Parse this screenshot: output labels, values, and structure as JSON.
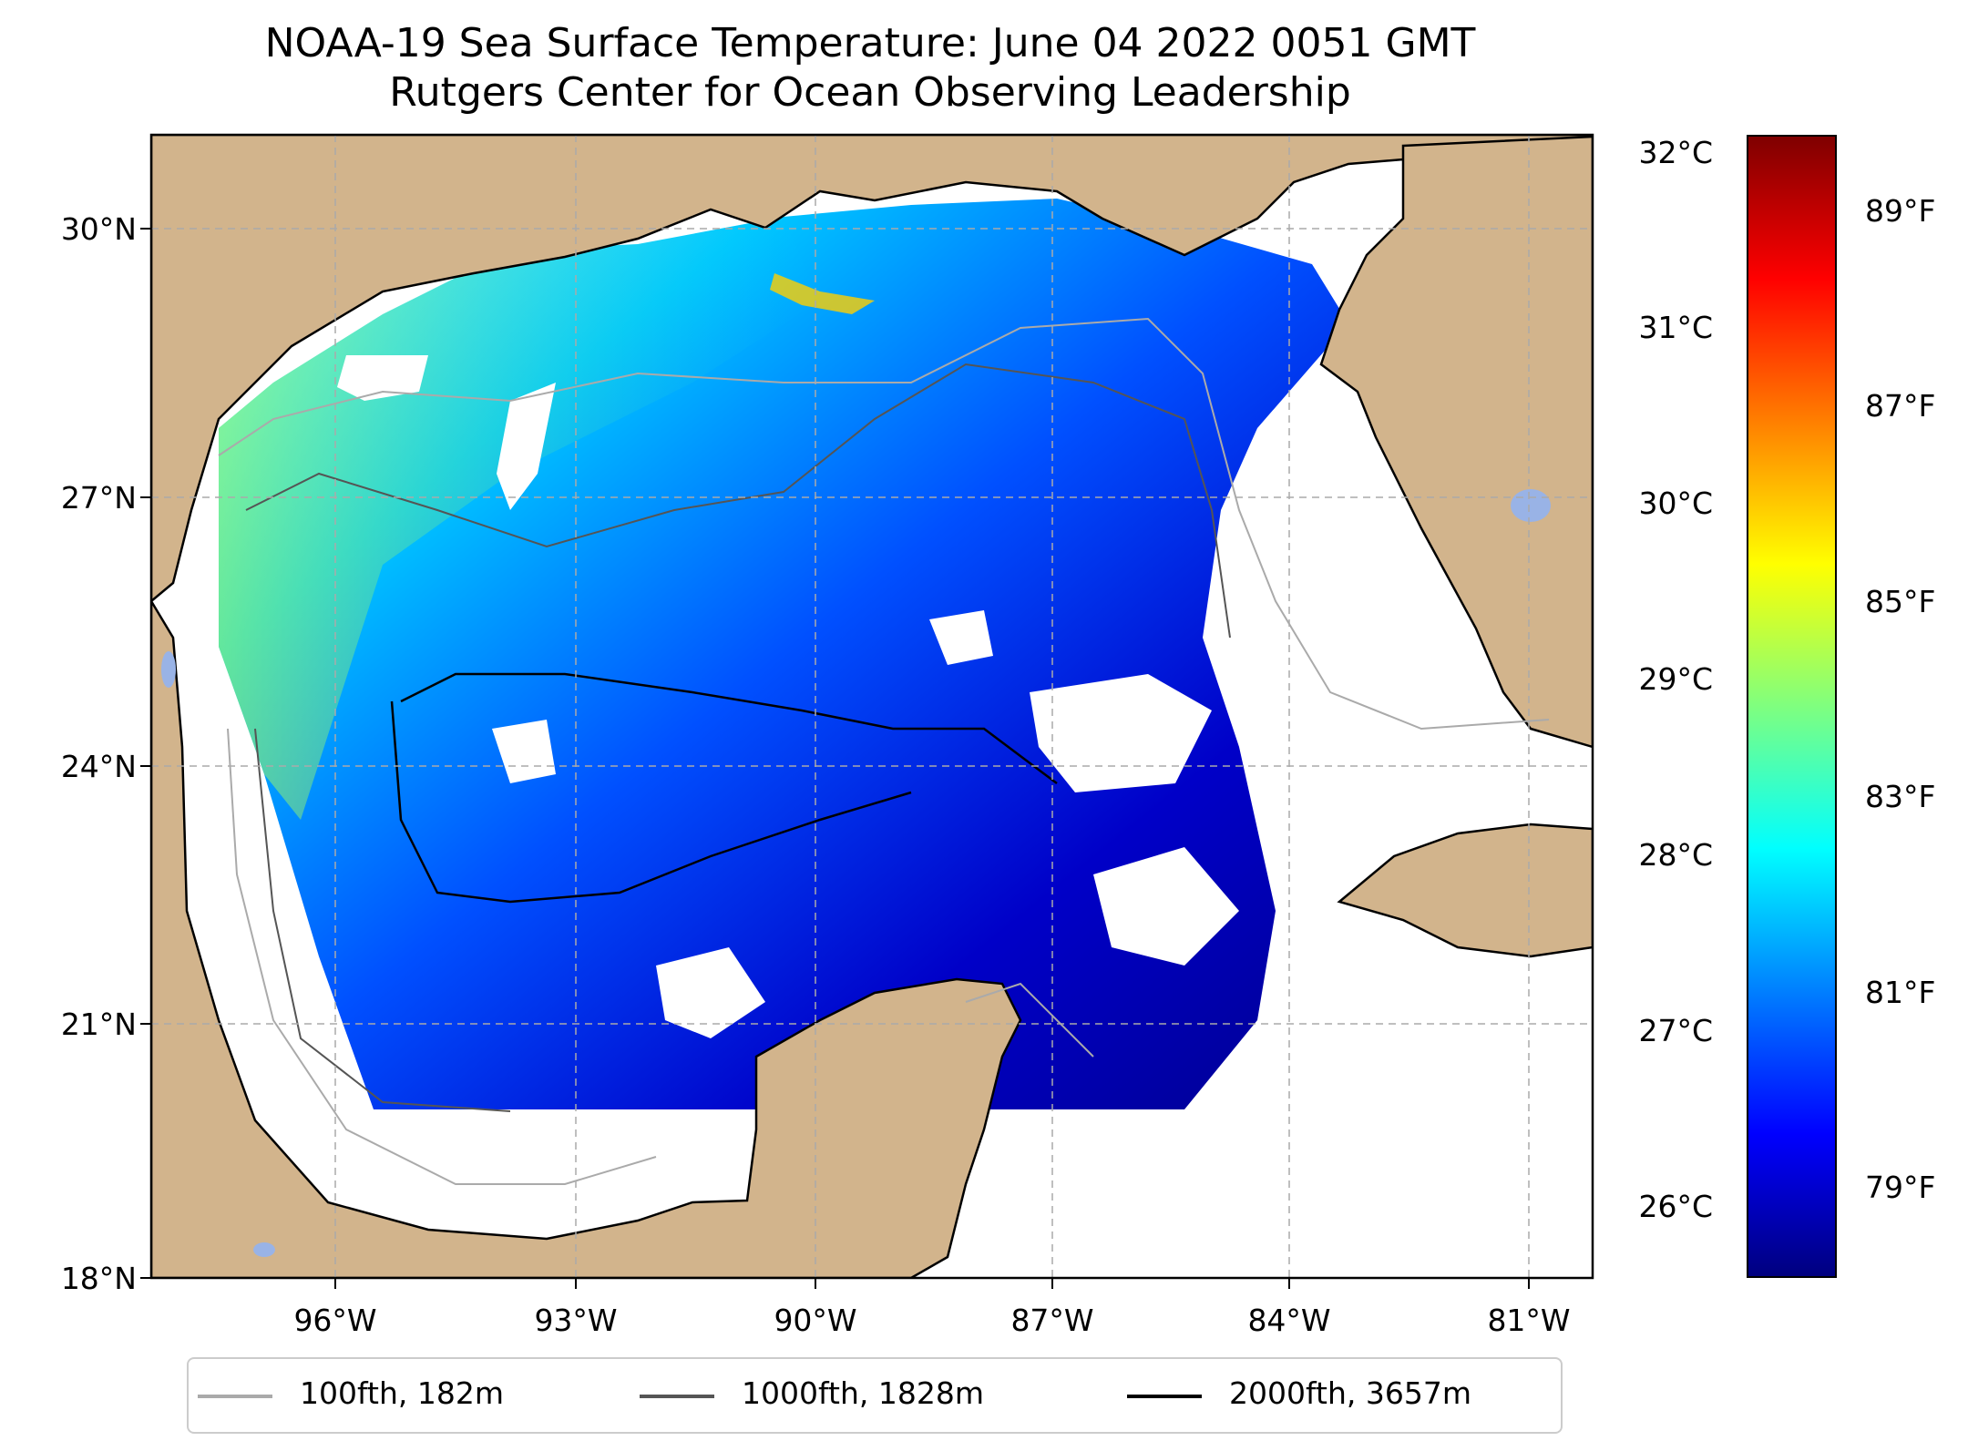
{
  "title": {
    "line1": "NOAA-19 Sea Surface Temperature: June 04 2022 0051 GMT",
    "line2": "Rutgers Center for Ocean Observing Leadership"
  },
  "map": {
    "lat_ticks": [
      "30°N",
      "27°N",
      "24°N",
      "21°N",
      "18°N"
    ],
    "lon_ticks": [
      "96°W",
      "93°W",
      "90°W",
      "87°W",
      "84°W",
      "81°W"
    ],
    "colors": {
      "land": "#d2b48c",
      "lakes": "#99b3e6",
      "nodata": "#ffffff",
      "grid": "#aaaaaa"
    }
  },
  "colorbar": {
    "celsius": [
      "32°C",
      "31°C",
      "30°C",
      "29°C",
      "28°C",
      "27°C",
      "26°C"
    ],
    "fahrenheit": [
      "89°F",
      "87°F",
      "85°F",
      "83°F",
      "81°F",
      "79°F"
    ],
    "colormap": [
      "#00007f",
      "#0000ff",
      "#007fff",
      "#00ffff",
      "#7fff7f",
      "#ffff00",
      "#ff7f00",
      "#ff0000",
      "#7f0000"
    ]
  },
  "legend": {
    "items": [
      {
        "label": "100fth, 182m",
        "color": "#aaaaaa"
      },
      {
        "label": "1000fth, 1828m",
        "color": "#555555"
      },
      {
        "label": "2000fth, 3657m",
        "color": "#000000"
      }
    ]
  }
}
